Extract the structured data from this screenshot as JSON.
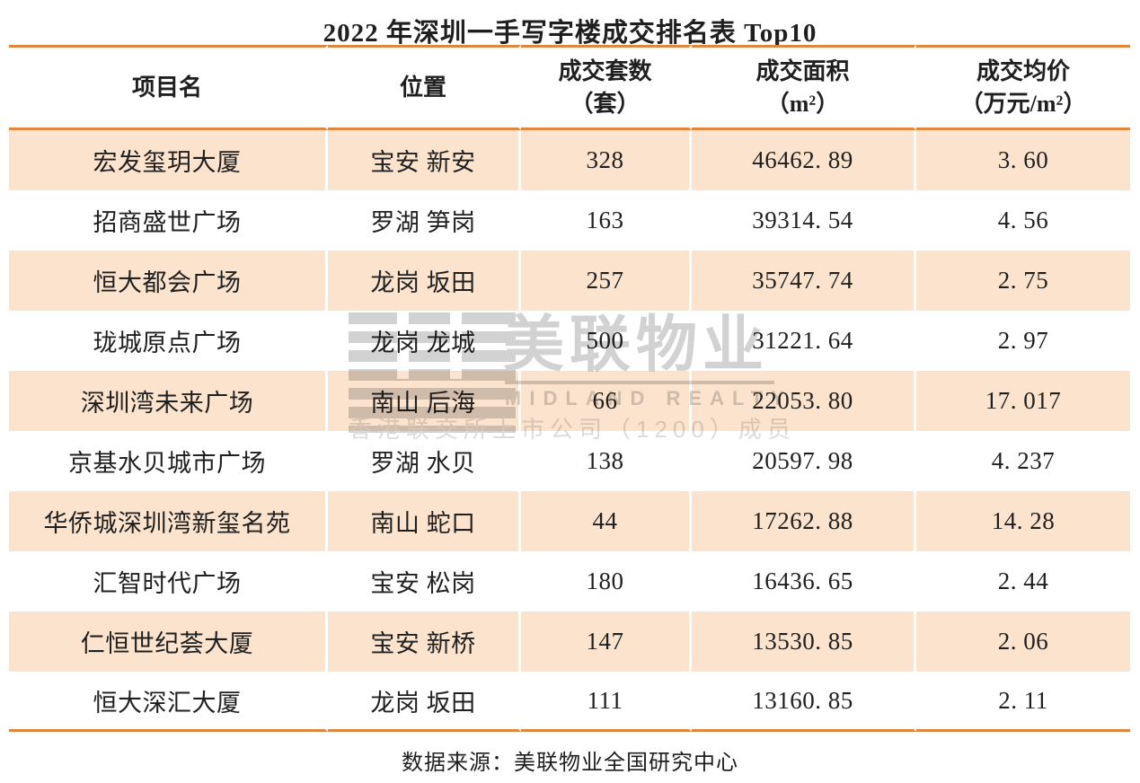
{
  "title": "2022 年深圳一手写字楼成交排名表 Top10",
  "colors": {
    "accent_orange": "#E0873F",
    "row_peach": "#FBE3CE",
    "text": "#1f1f1f",
    "watermark_grey": "#d2d2d2"
  },
  "table": {
    "headers": [
      {
        "line1": "项目名",
        "line2": ""
      },
      {
        "line1": "位置",
        "line2": ""
      },
      {
        "line1": "成交套数",
        "line2": "（套）"
      },
      {
        "line1": "成交面积",
        "line2": "（m²）"
      },
      {
        "line1": "成交均价",
        "line2": "（万元/m²）"
      }
    ],
    "rows": [
      {
        "project": "宏发玺玥大厦",
        "location": "宝安 新安",
        "units": "328",
        "area": "46462. 89",
        "price": "3. 60"
      },
      {
        "project": "招商盛世广场",
        "location": "罗湖 笋岗",
        "units": "163",
        "area": "39314. 54",
        "price": "4. 56"
      },
      {
        "project": "恒大都会广场",
        "location": "龙岗 坂田",
        "units": "257",
        "area": "35747. 74",
        "price": "2. 75"
      },
      {
        "project": "珑城原点广场",
        "location": "龙岗 龙城",
        "units": "500",
        "area": "31221. 64",
        "price": "2. 97"
      },
      {
        "project": "深圳湾未来广场",
        "location": "南山 后海",
        "units": "66",
        "area": "22053. 80",
        "price": "17. 017"
      },
      {
        "project": "京基水贝城市广场",
        "location": "罗湖 水贝",
        "units": "138",
        "area": "20597. 98",
        "price": "4. 237"
      },
      {
        "project": "华侨城深圳湾新玺名苑",
        "location": "南山 蛇口",
        "units": "44",
        "area": "17262. 88",
        "price": "14. 28"
      },
      {
        "project": "汇智时代广场",
        "location": "宝安 松岗",
        "units": "180",
        "area": "16436. 65",
        "price": "2. 44"
      },
      {
        "project": "仁恒世纪荟大厦",
        "location": "宝安 新桥",
        "units": "147",
        "area": "13530. 85",
        "price": "2. 06"
      },
      {
        "project": "恒大深汇大厦",
        "location": "龙岗 坂田",
        "units": "111",
        "area": "13160. 85",
        "price": "2. 11"
      }
    ]
  },
  "watermark": {
    "brand": "美联物业",
    "brand_en": "MIDLAND REALTY",
    "member": "香港联交所上市公司（1200）成员"
  },
  "footer": {
    "source": "数据来源：美联物业全国研究中心"
  },
  "chart_data": {
    "type": "table",
    "title": "2022 年深圳一手写字楼成交排名表 Top10",
    "columns": [
      "项目名",
      "位置",
      "成交套数（套）",
      "成交面积（m²）",
      "成交均价（万元/m²）"
    ],
    "rows": [
      [
        "宏发玺玥大厦",
        "宝安 新安",
        328,
        46462.89,
        3.6
      ],
      [
        "招商盛世广场",
        "罗湖 笋岗",
        163,
        39314.54,
        4.56
      ],
      [
        "恒大都会广场",
        "龙岗 坂田",
        257,
        35747.74,
        2.75
      ],
      [
        "珑城原点广场",
        "龙岗 龙城",
        500,
        31221.64,
        2.97
      ],
      [
        "深圳湾未来广场",
        "南山 后海",
        66,
        22053.8,
        17.017
      ],
      [
        "京基水贝城市广场",
        "罗湖 水贝",
        138,
        20597.98,
        4.237
      ],
      [
        "华侨城深圳湾新玺名苑",
        "南山 蛇口",
        44,
        17262.88,
        14.28
      ],
      [
        "汇智时代广场",
        "宝安 松岗",
        180,
        16436.65,
        2.44
      ],
      [
        "仁恒世纪荟大厦",
        "宝安 新桥",
        147,
        13530.85,
        2.06
      ],
      [
        "恒大深汇大厦",
        "龙岗 坂田",
        111,
        13160.85,
        2.11
      ]
    ],
    "source_note": "数据来源：美联物业全国研究中心"
  }
}
